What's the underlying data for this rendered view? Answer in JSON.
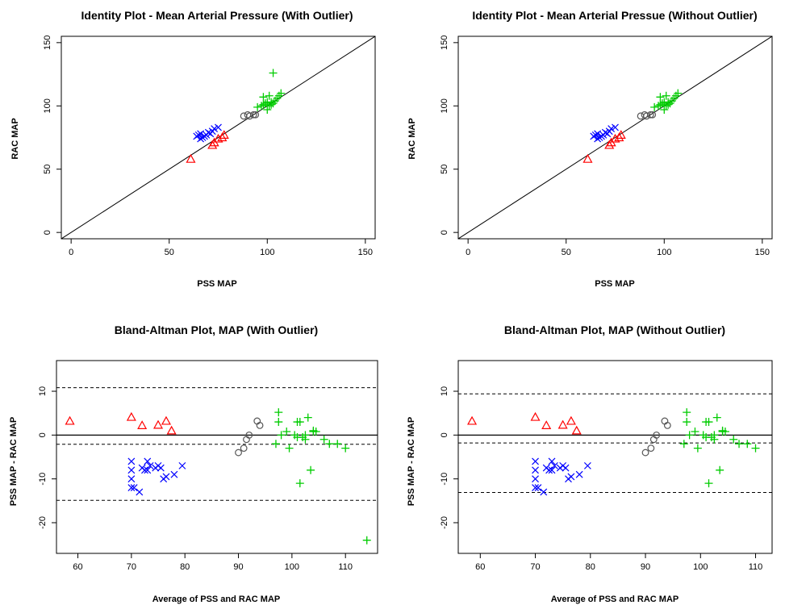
{
  "colors": {
    "triangle": "#ff0000",
    "x_marker": "#0000ff",
    "circle": "#555555",
    "plus": "#00cc00",
    "line": "#000000"
  },
  "chart_data": [
    {
      "type": "scatter",
      "title": "Identity Plot - Mean Arterial Pressure (With Outlier)",
      "xlabel": "PSS MAP",
      "ylabel": "RAC MAP",
      "xlim": [
        -5,
        155
      ],
      "ylim": [
        -5,
        155
      ],
      "xticks": [
        0,
        50,
        100,
        150
      ],
      "yticks": [
        0,
        50,
        100,
        150
      ],
      "identity_line": true,
      "series": [
        {
          "marker": "triangle",
          "color": "#ff0000",
          "x": [
            61,
            72,
            73,
            75,
            77,
            78
          ],
          "y": [
            58,
            69,
            71,
            74,
            75,
            77
          ]
        },
        {
          "marker": "x",
          "color": "#0000ff",
          "x": [
            64,
            65,
            66,
            66,
            67,
            68,
            69,
            70,
            71,
            72,
            73,
            75
          ],
          "y": [
            76,
            77,
            74,
            78,
            75,
            76,
            77,
            79,
            78,
            80,
            82,
            83
          ]
        },
        {
          "marker": "circle",
          "color": "#555555",
          "x": [
            88,
            90,
            91,
            93,
            94
          ],
          "y": [
            92,
            93,
            92,
            93,
            93
          ]
        },
        {
          "marker": "plus",
          "color": "#00cc00",
          "x": [
            95,
            97,
            98,
            99,
            100,
            100,
            101,
            102,
            102,
            103,
            104,
            105,
            106,
            107,
            98,
            101,
            103
          ],
          "y": [
            99,
            100,
            101,
            102,
            97,
            103,
            100,
            101,
            103,
            102,
            104,
            106,
            108,
            110,
            107,
            108,
            126
          ]
        }
      ]
    },
    {
      "type": "scatter",
      "title": "Identity Plot - Mean Arterial Pressue (Without Outlier)",
      "xlabel": "PSS MAP",
      "ylabel": "RAC MAP",
      "xlim": [
        -5,
        155
      ],
      "ylim": [
        -5,
        155
      ],
      "xticks": [
        0,
        50,
        100,
        150
      ],
      "yticks": [
        0,
        50,
        100,
        150
      ],
      "identity_line": true,
      "series": [
        {
          "marker": "triangle",
          "color": "#ff0000",
          "x": [
            61,
            72,
            73,
            75,
            77,
            78
          ],
          "y": [
            58,
            69,
            71,
            74,
            75,
            77
          ]
        },
        {
          "marker": "x",
          "color": "#0000ff",
          "x": [
            64,
            65,
            66,
            66,
            67,
            68,
            69,
            70,
            71,
            72,
            73,
            75
          ],
          "y": [
            76,
            77,
            74,
            78,
            75,
            76,
            77,
            79,
            78,
            80,
            82,
            83
          ]
        },
        {
          "marker": "circle",
          "color": "#555555",
          "x": [
            88,
            90,
            91,
            93,
            94
          ],
          "y": [
            92,
            93,
            92,
            93,
            93
          ]
        },
        {
          "marker": "plus",
          "color": "#00cc00",
          "x": [
            95,
            97,
            98,
            99,
            100,
            100,
            101,
            102,
            102,
            103,
            104,
            105,
            106,
            107,
            98,
            101
          ],
          "y": [
            99,
            100,
            101,
            102,
            97,
            103,
            100,
            101,
            103,
            102,
            104,
            106,
            108,
            110,
            107,
            108
          ]
        }
      ]
    },
    {
      "type": "scatter",
      "title": "Bland-Altman Plot, MAP (With Outlier)",
      "xlabel": "Average of PSS and RAC MAP",
      "ylabel": "PSS MAP - RAC MAP",
      "xlim": [
        56,
        116
      ],
      "ylim": [
        -27,
        17
      ],
      "xticks": [
        60,
        70,
        80,
        90,
        100,
        110
      ],
      "yticks": [
        -20,
        -10,
        0,
        10
      ],
      "hlines": [
        {
          "y": 10.8,
          "style": "dashed"
        },
        {
          "y": 0,
          "style": "solid"
        },
        {
          "y": -2.1,
          "style": "dashed"
        },
        {
          "y": -14.9,
          "style": "dashed"
        }
      ],
      "series": [
        {
          "marker": "triangle",
          "color": "#ff0000",
          "x": [
            58.5,
            70,
            72,
            75,
            76.5,
            77.5
          ],
          "y": [
            3.2,
            4.1,
            2.2,
            2.3,
            3.2,
            1.0
          ]
        },
        {
          "marker": "x",
          "color": "#0000ff",
          "x": [
            70,
            70,
            70,
            70,
            70.5,
            71.5,
            72,
            72.5,
            73,
            73,
            73.5,
            74.5,
            75,
            75.5,
            76,
            76.5,
            78,
            79.5
          ],
          "y": [
            -6,
            -8,
            -10,
            -12,
            -12,
            -13,
            -7.5,
            -8,
            -6,
            -8,
            -7,
            -7.5,
            -7,
            -7.5,
            -10,
            -9.5,
            -9,
            -7
          ]
        },
        {
          "marker": "circle",
          "color": "#555555",
          "x": [
            90,
            91,
            91.5,
            92,
            93.5,
            94
          ],
          "y": [
            -4,
            -3,
            -1,
            0,
            3.2,
            2.2
          ]
        },
        {
          "marker": "plus",
          "color": "#00cc00",
          "x": [
            97,
            97.5,
            97.5,
            98,
            99,
            99.5,
            100.5,
            101,
            101,
            101.5,
            101.5,
            102,
            102.5,
            102.5,
            103,
            103.5,
            104,
            104,
            104.5,
            106,
            107,
            108.5,
            110,
            114
          ],
          "y": [
            -2,
            5.2,
            3,
            0,
            0.8,
            -3,
            0,
            3,
            -0.5,
            -11,
            3,
            -0.5,
            0,
            -1,
            4,
            -8,
            0.8,
            1,
            0.8,
            -1,
            -2,
            -2,
            -3,
            -24
          ]
        }
      ]
    },
    {
      "type": "scatter",
      "title": "Bland-Altman Plot, MAP (Without Outlier)",
      "xlabel": "Average of PSS and RAC MAP",
      "ylabel": "PSS MAP - RAC MAP",
      "xlim": [
        56,
        113
      ],
      "ylim": [
        -27,
        17
      ],
      "xticks": [
        60,
        70,
        80,
        90,
        100,
        110
      ],
      "yticks": [
        -20,
        -10,
        0,
        10
      ],
      "hlines": [
        {
          "y": 9.4,
          "style": "dashed"
        },
        {
          "y": 0,
          "style": "solid"
        },
        {
          "y": -1.8,
          "style": "dashed"
        },
        {
          "y": -13.1,
          "style": "dashed"
        }
      ],
      "series": [
        {
          "marker": "triangle",
          "color": "#ff0000",
          "x": [
            58.5,
            70,
            72,
            75,
            76.5,
            77.5
          ],
          "y": [
            3.2,
            4.1,
            2.2,
            2.3,
            3.2,
            1.0
          ]
        },
        {
          "marker": "x",
          "color": "#0000ff",
          "x": [
            70,
            70,
            70,
            70,
            70.5,
            71.5,
            72,
            72.5,
            73,
            73,
            73.5,
            74.5,
            75,
            75.5,
            76,
            76.5,
            78,
            79.5
          ],
          "y": [
            -6,
            -8,
            -10,
            -12,
            -12,
            -13,
            -7.5,
            -8,
            -6,
            -8,
            -7,
            -7.5,
            -7,
            -7.5,
            -10,
            -9.5,
            -9,
            -7
          ]
        },
        {
          "marker": "circle",
          "color": "#555555",
          "x": [
            90,
            91,
            91.5,
            92,
            93.5,
            94
          ],
          "y": [
            -4,
            -3,
            -1,
            0,
            3.2,
            2.2
          ]
        },
        {
          "marker": "plus",
          "color": "#00cc00",
          "x": [
            97,
            97.5,
            97.5,
            98,
            99,
            99.5,
            100.5,
            101,
            101,
            101.5,
            101.5,
            102,
            102.5,
            102.5,
            103,
            103.5,
            104,
            104,
            104.5,
            106,
            107,
            108.5,
            110
          ],
          "y": [
            -2,
            5.2,
            3,
            0,
            0.8,
            -3,
            0,
            3,
            -0.5,
            -11,
            3,
            -0.5,
            0,
            -1,
            4,
            -8,
            0.8,
            1,
            0.8,
            -1,
            -2,
            -2,
            -3
          ]
        }
      ]
    }
  ]
}
